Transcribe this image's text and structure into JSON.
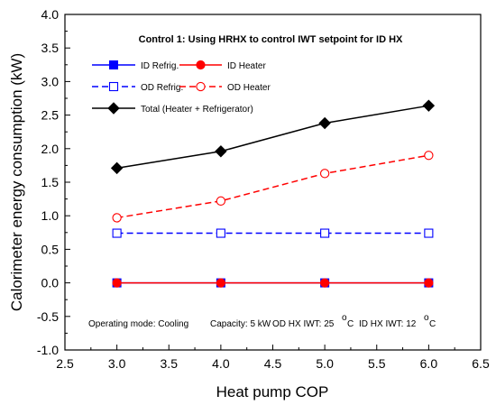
{
  "chart_data": {
    "type": "line",
    "title": "Control 1: Using HRHX to control IWT setpoint for ID HX",
    "xlabel": "Heat pump COP",
    "ylabel": "Calorimeter energy consumption (kW)",
    "xlim": [
      2.5,
      6.5
    ],
    "ylim": [
      -1.0,
      4.0
    ],
    "x_ticks": [
      "2.5",
      "3.0",
      "3.5",
      "4.0",
      "4.5",
      "5.0",
      "5.5",
      "6.0",
      "6.5"
    ],
    "y_ticks": [
      "-1.0",
      "-0.5",
      "0.0",
      "0.5",
      "1.0",
      "1.5",
      "2.0",
      "2.5",
      "3.0",
      "3.5",
      "4.0"
    ],
    "x": [
      3.0,
      4.0,
      5.0,
      6.0
    ],
    "grid": false,
    "legend_position": "top-left",
    "series": [
      {
        "name": "ID Refrig.",
        "values": [
          0.0,
          0.0,
          0.0,
          0.0
        ],
        "color": "#0000ff",
        "marker": "filled-square",
        "dash": "solid"
      },
      {
        "name": "ID Heater",
        "values": [
          0.0,
          0.0,
          0.0,
          0.0
        ],
        "color": "#ff0000",
        "marker": "filled-circle",
        "dash": "solid"
      },
      {
        "name": "OD Refrig.",
        "values": [
          0.74,
          0.74,
          0.74,
          0.74
        ],
        "color": "#0000ff",
        "marker": "open-square",
        "dash": "dashed"
      },
      {
        "name": "OD Heater",
        "values": [
          0.97,
          1.22,
          1.63,
          1.9
        ],
        "color": "#ff0000",
        "marker": "open-circle",
        "dash": "dashed"
      },
      {
        "name": "Total (Heater + Refrigerator)",
        "values": [
          1.71,
          1.96,
          2.38,
          2.64
        ],
        "color": "#000000",
        "marker": "filled-diamond",
        "dash": "solid"
      }
    ],
    "annotation": {
      "mode": "Operating mode: Cooling",
      "capacity": "Capacity: 5 kW",
      "od_prefix": "OD HX IWT: 25",
      "id_prefix": "ID HX IWT: 12",
      "degree": "o",
      "unit": "C"
    }
  }
}
